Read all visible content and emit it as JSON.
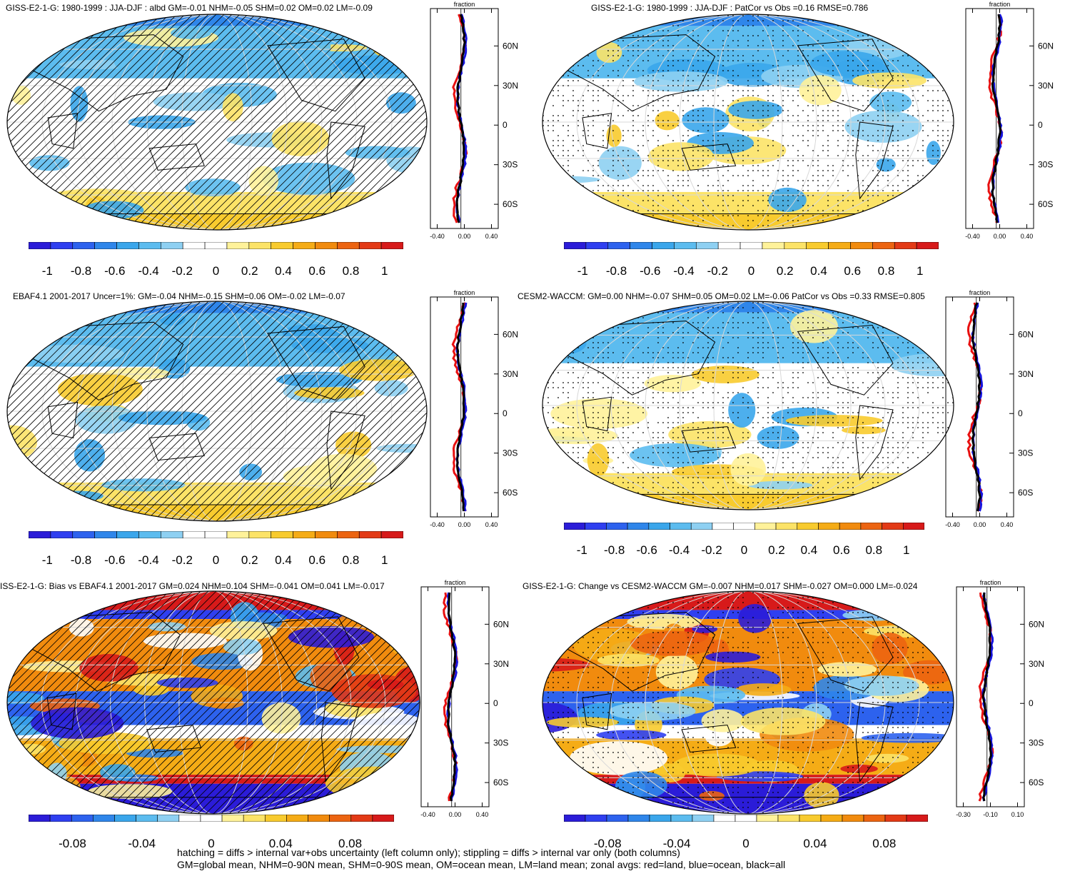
{
  "panels": [
    {
      "title": "GISS-E2-1-G: 1980-1999 : JJA-DJF : albd GM=-0.01 NHM=-0.05 SHM=0.02 OM=0.02 LM=-0.09",
      "overlay": "hatch",
      "map_style": "weak",
      "zonal": {
        "title": "fraction",
        "x_ticks": [
          "-0.40",
          "0.00",
          "0.40"
        ],
        "lat_ticks": [
          "60N",
          "30N",
          "0",
          "30S",
          "60S"
        ]
      },
      "colorbar_labels": [
        "-1",
        "-0.8",
        "-0.6",
        "-0.4",
        "-0.2",
        "0",
        "0.2",
        "0.4",
        "0.6",
        "0.8",
        "1"
      ]
    },
    {
      "title": "GISS-E2-1-G: 1980-1999 : JJA-DJF : PatCor vs Obs =0.16 RMSE=0.786",
      "overlay": "stipple",
      "map_style": "weak",
      "zonal": {
        "title": "fraction",
        "x_ticks": [
          "-0.40",
          "0.00",
          "0.40"
        ],
        "lat_ticks": [
          "60N",
          "30N",
          "0",
          "30S",
          "60S"
        ]
      },
      "colorbar_labels": [
        "-1",
        "-0.8",
        "-0.6",
        "-0.4",
        "-0.2",
        "0",
        "0.2",
        "0.4",
        "0.6",
        "0.8",
        "1"
      ]
    },
    {
      "title": "EBAF4.1 2001-2017 Uncer=1%: GM=-0.04 NHM=-0.15 SHM=0.06 OM=-0.02 LM=-0.07",
      "overlay": "hatch",
      "map_style": "weak",
      "zonal": {
        "title": "fraction",
        "x_ticks": [
          "-0.40",
          "0.00",
          "0.40"
        ],
        "lat_ticks": [
          "60N",
          "30N",
          "0",
          "30S",
          "60S"
        ]
      },
      "colorbar_labels": [
        "-1",
        "-0.8",
        "-0.6",
        "-0.4",
        "-0.2",
        "0",
        "0.2",
        "0.4",
        "0.6",
        "0.8",
        "1"
      ]
    },
    {
      "title": "CESM2-WACCM: GM=0.00 NHM=-0.07 SHM=0.05 OM=0.02 LM=-0.06 PatCor vs Obs =0.33 RMSE=0.805",
      "overlay": "stipple",
      "map_style": "weak",
      "zonal": {
        "title": "fraction",
        "x_ticks": [
          "-0.40",
          "0.00",
          "0.40"
        ],
        "lat_ticks": [
          "60N",
          "30N",
          "0",
          "30S",
          "60S"
        ]
      },
      "colorbar_labels": [
        "-1",
        "-0.8",
        "-0.6",
        "-0.4",
        "-0.2",
        "0",
        "0.2",
        "0.4",
        "0.6",
        "0.8",
        "1"
      ]
    },
    {
      "title": "ISS-E2-1-G: Bias vs EBAF4.1 2001-2017 GM=0.024 NHM=0.104 SHM=-0.041 OM=0.041 LM=-0.017",
      "overlay": "hatch",
      "map_style": "strong",
      "zonal": {
        "title": "fraction",
        "x_ticks": [
          "-0.40",
          "0.00",
          "0.40"
        ],
        "lat_ticks": [
          "60N",
          "30N",
          "0",
          "30S",
          "60S"
        ]
      },
      "colorbar_labels": [
        "-0.08",
        "-0.04",
        "0",
        "0.04",
        "0.08"
      ]
    },
    {
      "title": "GISS-E2-1-G: Change vs CESM2-WACCM GM=-0.007 NHM=0.017 SHM=-0.027 OM=0.000 LM=-0.024",
      "overlay": "stipple",
      "map_style": "strong",
      "zonal": {
        "title": "fraction",
        "x_ticks": [
          "-0.30",
          "-0.10",
          "0.10"
        ],
        "lat_ticks": [
          "60N",
          "30N",
          "0",
          "30S",
          "60S"
        ]
      },
      "colorbar_labels": [
        "-0.08",
        "-0.04",
        "0",
        "0.04",
        "0.08"
      ]
    }
  ],
  "palette_diverging": [
    "#2b1cd8",
    "#2f3ff0",
    "#2d62ee",
    "#2f86ea",
    "#3aa6eb",
    "#5cbcef",
    "#8ed0f2",
    "#ffffff",
    "#ffffff",
    "#fff29a",
    "#fce367",
    "#f8cb2e",
    "#f5ac16",
    "#f18b0e",
    "#ec6411",
    "#e33a16",
    "#d71a1a"
  ],
  "legend_lines": {
    "red": "land",
    "blue": "ocean",
    "black": "all"
  },
  "footer": {
    "line1": "hatching = diffs > internal var+obs uncertainty (left column only); stippling = diffs > internal var only (both columns)",
    "line2": "GM=global mean, NHM=0-90N mean, SHM=0-90S mean, OM=ocean mean, LM=land mean; zonal avgs: red=land, blue=ocean, black=all"
  }
}
